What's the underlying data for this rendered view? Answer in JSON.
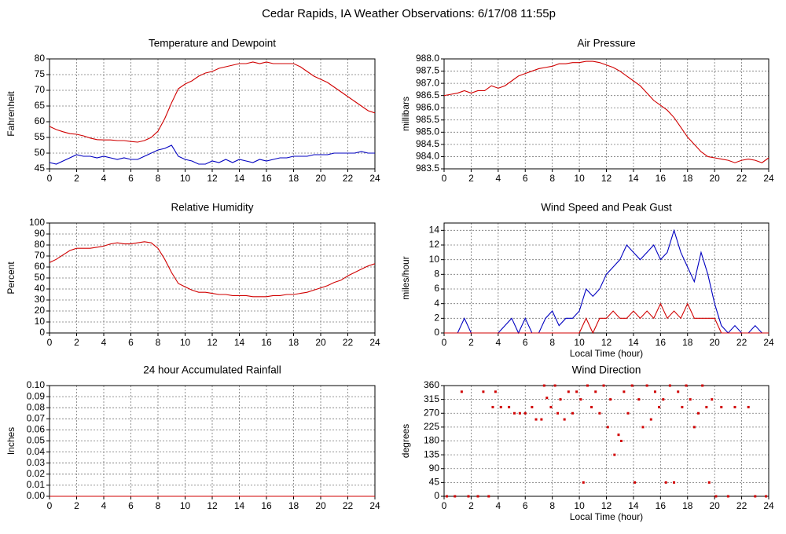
{
  "title": "Cedar Rapids, IA Weather Observations: 6/17/08 11:55p",
  "chart_data": [
    {
      "type": "line",
      "title": "Temperature and Dewpoint",
      "ylabel": "Fahrenheit",
      "x": [
        0,
        0.5,
        1,
        1.5,
        2,
        2.5,
        3,
        3.5,
        4,
        4.5,
        5,
        5.5,
        6,
        6.5,
        7,
        7.5,
        8,
        8.5,
        9,
        9.5,
        10,
        10.5,
        11,
        11.5,
        12,
        12.5,
        13,
        13.5,
        14,
        14.5,
        15,
        15.5,
        16,
        16.5,
        17,
        17.5,
        18,
        18.5,
        19,
        19.5,
        20,
        20.5,
        21,
        21.5,
        22,
        22.5,
        23,
        23.5,
        24
      ],
      "series": [
        {
          "color": "#d00000",
          "values": [
            58.5,
            57.5,
            56.8,
            56.2,
            56,
            55.5,
            54.8,
            54.3,
            54.2,
            54.2,
            54,
            54,
            53.7,
            53.5,
            54,
            55,
            57,
            61,
            66,
            70.5,
            72,
            73,
            74.5,
            75.5,
            76,
            77,
            77.5,
            78,
            78.5,
            78.5,
            79,
            78.5,
            79,
            78.5,
            78.5,
            78.5,
            78.5,
            77.5,
            76,
            74.5,
            73.5,
            72.5,
            71,
            69.5,
            68,
            66.5,
            65,
            63.5,
            62.8
          ]
        },
        {
          "color": "#0000c0",
          "values": [
            47,
            46.5,
            47.5,
            48.5,
            49.5,
            49,
            49,
            48.5,
            49,
            48.5,
            48,
            48.5,
            48,
            48,
            49,
            50,
            51,
            51.5,
            52.5,
            49,
            48,
            47.5,
            46.5,
            46.5,
            47.5,
            47,
            48,
            47,
            48,
            47.5,
            47,
            48,
            47.5,
            48,
            48.5,
            48.5,
            49,
            49,
            49,
            49.5,
            49.5,
            49.5,
            50,
            50,
            50,
            50,
            50.5,
            50,
            50
          ]
        }
      ],
      "xlim": [
        0,
        24
      ],
      "xticks": [
        0,
        2,
        4,
        6,
        8,
        10,
        12,
        14,
        16,
        18,
        20,
        22,
        24
      ],
      "ylim": [
        45,
        80
      ],
      "yticks": [
        45,
        50,
        55,
        60,
        65,
        70,
        75,
        80
      ],
      "grid": true
    },
    {
      "type": "line",
      "title": "Air Pressure",
      "ylabel": "millibars",
      "x": [
        0,
        0.5,
        1,
        1.5,
        2,
        2.5,
        3,
        3.5,
        4,
        4.5,
        5,
        5.5,
        6,
        6.5,
        7,
        7.5,
        8,
        8.5,
        9,
        9.5,
        10,
        10.5,
        11,
        11.5,
        12,
        12.5,
        13,
        13.5,
        14,
        14.5,
        15,
        15.5,
        16,
        16.5,
        17,
        17.5,
        18,
        18.5,
        19,
        19.5,
        20,
        20.5,
        21,
        21.5,
        22,
        22.5,
        23,
        23.5,
        24
      ],
      "series": [
        {
          "color": "#d00000",
          "values": [
            986.5,
            986.55,
            986.6,
            986.7,
            986.6,
            986.7,
            986.7,
            986.9,
            986.8,
            986.9,
            987.1,
            987.3,
            987.4,
            987.5,
            987.6,
            987.65,
            987.7,
            987.8,
            987.8,
            987.85,
            987.85,
            987.9,
            987.9,
            987.85,
            987.75,
            987.65,
            987.5,
            987.3,
            987.1,
            986.9,
            986.6,
            986.3,
            986.1,
            985.9,
            985.6,
            985.2,
            984.8,
            984.5,
            984.2,
            984,
            983.95,
            983.9,
            983.85,
            983.75,
            983.85,
            983.9,
            983.85,
            983.75,
            983.95
          ]
        }
      ],
      "xlim": [
        0,
        24
      ],
      "xticks": [
        0,
        2,
        4,
        6,
        8,
        10,
        12,
        14,
        16,
        18,
        20,
        22,
        24
      ],
      "ylim": [
        983.5,
        988
      ],
      "yticks": [
        983.5,
        {
          "value": 984,
          "label": "984.0"
        },
        984.5,
        {
          "value": 985,
          "label": "985.0"
        },
        985.5,
        {
          "value": 986,
          "label": "986.0"
        },
        986.5,
        {
          "value": 987,
          "label": "987.0"
        },
        987.5,
        {
          "value": 988,
          "label": "988.0"
        }
      ],
      "grid": true
    },
    {
      "type": "line",
      "title": "Relative Humidity",
      "ylabel": "Percent",
      "x": [
        0,
        0.5,
        1,
        1.5,
        2,
        2.5,
        3,
        3.5,
        4,
        4.5,
        5,
        5.5,
        6,
        6.5,
        7,
        7.5,
        8,
        8.5,
        9,
        9.5,
        10,
        10.5,
        11,
        11.5,
        12,
        12.5,
        13,
        13.5,
        14,
        14.5,
        15,
        15.5,
        16,
        16.5,
        17,
        17.5,
        18,
        18.5,
        19,
        19.5,
        20,
        20.5,
        21,
        21.5,
        22,
        22.5,
        23,
        23.5,
        24
      ],
      "series": [
        {
          "color": "#d00000",
          "values": [
            64,
            67,
            71,
            75,
            77,
            77,
            77,
            78,
            79,
            81,
            82,
            81,
            81,
            82,
            83,
            82,
            77,
            67,
            55,
            45,
            42,
            39,
            37,
            37,
            36,
            35,
            35,
            34,
            34,
            34,
            33,
            33,
            33,
            34,
            34,
            35,
            35,
            36,
            37,
            39,
            41,
            43,
            46,
            48,
            52,
            55,
            58,
            61,
            63
          ]
        }
      ],
      "xlim": [
        0,
        24
      ],
      "xticks": [
        0,
        2,
        4,
        6,
        8,
        10,
        12,
        14,
        16,
        18,
        20,
        22,
        24
      ],
      "ylim": [
        0,
        100
      ],
      "yticks": [
        0,
        10,
        20,
        30,
        40,
        50,
        60,
        70,
        80,
        90,
        100
      ],
      "grid": true
    },
    {
      "type": "line",
      "title": "Wind Speed and Peak Gust",
      "ylabel": "miles/hour",
      "xlabel": "Local Time (hour)",
      "x": [
        0,
        0.5,
        1,
        1.5,
        2,
        2.5,
        3,
        3.5,
        4,
        4.5,
        5,
        5.5,
        6,
        6.5,
        7,
        7.5,
        8,
        8.5,
        9,
        9.5,
        10,
        10.5,
        11,
        11.5,
        12,
        12.5,
        13,
        13.5,
        14,
        14.5,
        15,
        15.5,
        16,
        16.5,
        17,
        17.5,
        18,
        18.5,
        19,
        19.5,
        20,
        20.5,
        21,
        21.5,
        22,
        22.5,
        23,
        23.5,
        24
      ],
      "series": [
        {
          "color": "#0000c0",
          "values": [
            0,
            0,
            0,
            2,
            0,
            0,
            0,
            0,
            0,
            1,
            2,
            0,
            2,
            0,
            0,
            2,
            3,
            1,
            2,
            2,
            3,
            6,
            5,
            6,
            8,
            9,
            10,
            12,
            11,
            10,
            11,
            12,
            10,
            11,
            14,
            11,
            9,
            7,
            11,
            8,
            4,
            1,
            0,
            1,
            0,
            0,
            1,
            0,
            0
          ]
        },
        {
          "color": "#d00000",
          "values": [
            0,
            0,
            0,
            0,
            0,
            0,
            0,
            0,
            0,
            0,
            0,
            0,
            0,
            0,
            0,
            0,
            0,
            0,
            0,
            0,
            0,
            2,
            0,
            2,
            2,
            3,
            2,
            2,
            3,
            2,
            3,
            2,
            4,
            2,
            3,
            2,
            4,
            2,
            2,
            2,
            2,
            0,
            0,
            0,
            0,
            0,
            0,
            0,
            0
          ]
        }
      ],
      "xlim": [
        0,
        24
      ],
      "xticks": [
        0,
        2,
        4,
        6,
        8,
        10,
        12,
        14,
        16,
        18,
        20,
        22,
        24
      ],
      "ylim": [
        0,
        15
      ],
      "yticks": [
        0,
        2,
        4,
        6,
        8,
        10,
        12,
        14
      ],
      "grid": true
    },
    {
      "type": "line",
      "title": "24 hour Accumulated Rainfall",
      "ylabel": "Inches",
      "x": [
        0,
        24
      ],
      "series": [
        {
          "color": "#d00000",
          "values": [
            0,
            0
          ]
        }
      ],
      "xlim": [
        0,
        24
      ],
      "xticks": [
        0,
        2,
        4,
        6,
        8,
        10,
        12,
        14,
        16,
        18,
        20,
        22,
        24
      ],
      "ylim": [
        0,
        0.1
      ],
      "yticks": [
        {
          "value": 0,
          "label": "0.00"
        },
        0.01,
        0.02,
        0.03,
        0.04,
        0.05,
        0.06,
        0.07,
        0.08,
        0.09,
        {
          "value": 0.1,
          "label": "0.10"
        }
      ],
      "grid": true
    },
    {
      "type": "scatter",
      "title": "Wind Direction",
      "ylabel": "degrees",
      "xlabel": "Local Time (hour)",
      "x": [
        0.2,
        0.8,
        1.3,
        1.8,
        2.5,
        2.9,
        3.3,
        3.6,
        3.8,
        4.2,
        4.8,
        5.2,
        5.6,
        6,
        6.5,
        6.8,
        7.2,
        7.4,
        7.6,
        7.9,
        8.2,
        8.4,
        8.6,
        8.9,
        9.2,
        9.5,
        9.8,
        10.1,
        10.3,
        10.6,
        10.9,
        11.2,
        11.5,
        11.8,
        12.1,
        12.3,
        12.6,
        12.9,
        13.1,
        13.3,
        13.6,
        13.9,
        14.1,
        14.4,
        14.7,
        15,
        15.3,
        15.6,
        15.9,
        16.2,
        16.4,
        16.7,
        17,
        17.3,
        17.6,
        17.9,
        18.2,
        18.5,
        18.8,
        19.1,
        19.4,
        19.6,
        19.8,
        20.1,
        20.5,
        21,
        21.5,
        22.5,
        23,
        23.8
      ],
      "series": [
        {
          "color": "#d00000",
          "values": [
            0,
            0,
            340,
            0,
            0,
            340,
            0,
            290,
            340,
            290,
            290,
            270,
            270,
            270,
            290,
            250,
            250,
            360,
            320,
            290,
            360,
            270,
            315,
            250,
            340,
            270,
            340,
            315,
            45,
            360,
            290,
            340,
            270,
            360,
            225,
            315,
            135,
            200,
            180,
            340,
            270,
            360,
            45,
            315,
            225,
            360,
            250,
            340,
            290,
            315,
            45,
            360,
            45,
            340,
            290,
            360,
            315,
            225,
            270,
            360,
            290,
            45,
            315,
            0,
            290,
            0,
            290,
            290,
            0,
            0
          ]
        }
      ],
      "xlim": [
        0,
        24
      ],
      "xticks": [
        0,
        2,
        4,
        6,
        8,
        10,
        12,
        14,
        16,
        18,
        20,
        22,
        24
      ],
      "ylim": [
        0,
        360
      ],
      "yticks": [
        0,
        45,
        90,
        135,
        180,
        225,
        270,
        315,
        360
      ],
      "grid": true
    }
  ]
}
